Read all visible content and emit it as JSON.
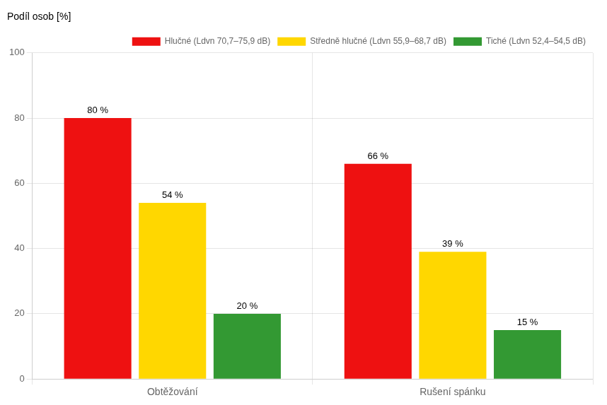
{
  "chart_data": {
    "type": "bar",
    "ylabel": "Podíl osob [%]",
    "categories": [
      "Obtěžování",
      "Rušení spánku"
    ],
    "series": [
      {
        "name": "Hlučné (Ldvn 70,7–75,9 dB)",
        "color": "#EE1111",
        "values": [
          80,
          66
        ],
        "value_labels": [
          "80 %",
          "66 %"
        ]
      },
      {
        "name": "Středně hlučné (Ldvn 55,9–68,7 dB)",
        "color": "#FFD700",
        "values": [
          54,
          39
        ],
        "value_labels": [
          "54 %",
          "39 %"
        ]
      },
      {
        "name": "Tiché (Ldvn 52,4–54,5 dB)",
        "color": "#339933",
        "values": [
          20,
          15
        ],
        "value_labels": [
          "20 %",
          "15 %"
        ]
      }
    ],
    "ylim": [
      0,
      100
    ],
    "yticks": [
      0,
      20,
      40,
      60,
      80,
      100
    ],
    "grid": true,
    "legend": "upper right",
    "data_labels": true
  }
}
